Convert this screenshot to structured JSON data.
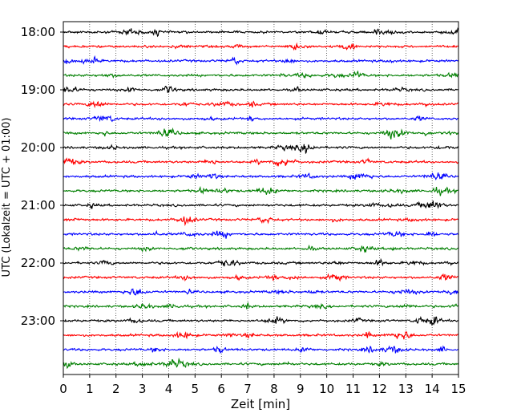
{
  "chart_data": {
    "type": "line",
    "title": "",
    "xlabel": "Zeit  [min]",
    "ylabel": "UTC (Lokalzeit = UTC + 01:00)",
    "xlim": [
      0,
      15
    ],
    "x_ticks": [
      "0",
      "1",
      "2",
      "3",
      "4",
      "5",
      "6",
      "7",
      "8",
      "9",
      "10",
      "11",
      "12",
      "13",
      "14",
      "15"
    ],
    "y_ticks": [
      "18:00",
      "19:00",
      "20:00",
      "21:00",
      "22:00",
      "23:00"
    ],
    "grid": "vertical dotted at each minute",
    "trace_interval_minutes": 15,
    "trace_start": "18:00",
    "trace_count": 24,
    "trace_colors": [
      "#000000",
      "#ff0000",
      "#0000ff",
      "#007f00"
    ]
  }
}
